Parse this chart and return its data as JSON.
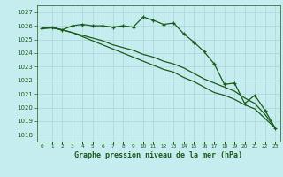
{
  "title": "Graphe pression niveau de la mer (hPa)",
  "background_color": "#c5ecee",
  "grid_color": "#aed8da",
  "line_color": "#1a5c1a",
  "x_labels": [
    "0",
    "1",
    "2",
    "3",
    "4",
    "5",
    "6",
    "7",
    "8",
    "9",
    "10",
    "11",
    "12",
    "13",
    "14",
    "15",
    "16",
    "17",
    "18",
    "19",
    "20",
    "21",
    "22",
    "23"
  ],
  "ylim": [
    1017.5,
    1027.5
  ],
  "xlim": [
    -0.5,
    23.5
  ],
  "yticks": [
    1018,
    1019,
    1020,
    1021,
    1022,
    1023,
    1024,
    1025,
    1026,
    1027
  ],
  "series1": [
    1025.8,
    1025.9,
    1025.7,
    1026.0,
    1026.1,
    1026.0,
    1026.0,
    1025.9,
    1026.0,
    1025.9,
    1026.65,
    1026.4,
    1026.1,
    1026.2,
    1025.4,
    1024.8,
    1024.1,
    1023.2,
    1021.7,
    1021.8,
    1020.3,
    1020.9,
    1019.8,
    1018.5
  ],
  "series2": [
    1025.8,
    1025.85,
    1025.7,
    1025.5,
    1025.3,
    1025.1,
    1024.9,
    1024.6,
    1024.4,
    1024.2,
    1023.9,
    1023.7,
    1023.4,
    1023.2,
    1022.9,
    1022.5,
    1022.1,
    1021.8,
    1021.5,
    1021.2,
    1020.7,
    1020.3,
    1019.5,
    1018.5
  ],
  "series3": [
    1025.8,
    1025.85,
    1025.7,
    1025.5,
    1025.2,
    1024.9,
    1024.6,
    1024.3,
    1024.0,
    1023.7,
    1023.4,
    1023.1,
    1022.8,
    1022.6,
    1022.2,
    1021.9,
    1021.5,
    1021.1,
    1020.9,
    1020.6,
    1020.2,
    1019.9,
    1019.2,
    1018.5
  ]
}
